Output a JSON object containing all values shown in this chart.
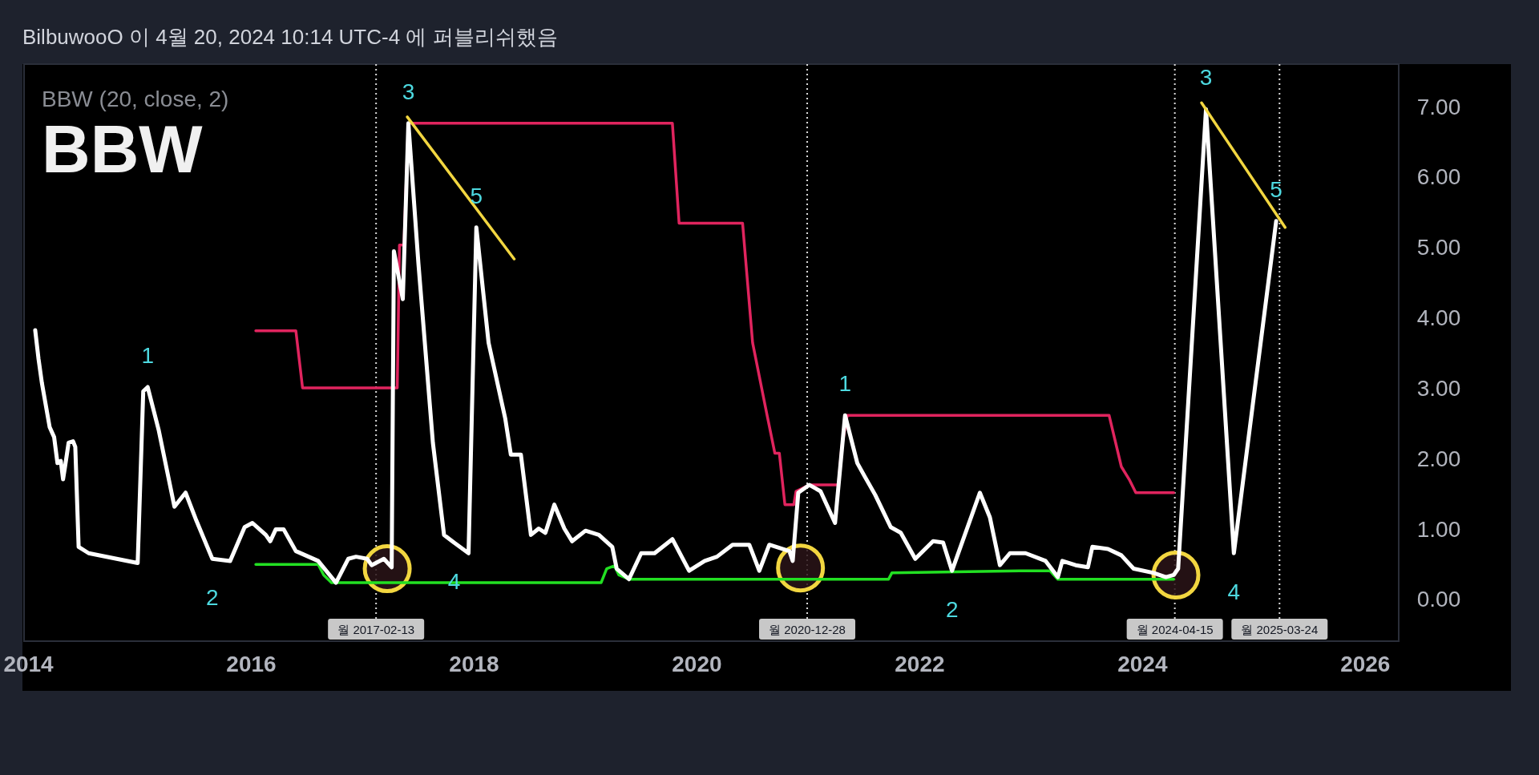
{
  "chart_data": {
    "type": "line",
    "title": "BilbuwooO 이 4월 20, 2024 10:14 UTC-4 에 퍼블리쉬했음",
    "subtitle": "BBW (20, close, 2)",
    "xlim": [
      2013.96,
      2026.3
    ],
    "ylim": [
      -0.6,
      7.6
    ],
    "xticks": [
      2014,
      2016,
      2018,
      2020,
      2022,
      2024,
      2026
    ],
    "yticks": [
      {
        "value": 0,
        "label": "0.00"
      },
      {
        "value": 1,
        "label": "1.00"
      },
      {
        "value": 2,
        "label": "2.00"
      },
      {
        "value": 3,
        "label": "3.00"
      },
      {
        "value": 4,
        "label": "4.00"
      },
      {
        "value": 5,
        "label": "5.00"
      },
      {
        "value": 6,
        "label": "6.00"
      },
      {
        "value": 7,
        "label": "7.00"
      }
    ],
    "series": [
      {
        "color": "#e0245e",
        "x": [
          2016.04,
          2016.4,
          2016.46,
          2017.31,
          2017.33,
          2017.37,
          2017.41,
          2019.78,
          2019.84,
          2020.41,
          2020.5,
          2020.63,
          2020.7,
          2020.74,
          2020.79,
          2020.87,
          2020.89,
          2021.01,
          2021.27,
          2021.3,
          2021.35,
          2023.7,
          2023.81,
          2023.88,
          2023.94,
          2024.28
        ],
        "values": [
          3.81,
          3.81,
          3.0,
          3.0,
          5.03,
          5.03,
          6.76,
          6.76,
          5.34,
          5.34,
          3.64,
          2.61,
          2.07,
          2.07,
          1.34,
          1.34,
          1.53,
          1.62,
          1.62,
          2.16,
          2.61,
          2.61,
          1.88,
          1.7,
          1.51,
          1.51
        ]
      },
      {
        "color": "#22e022",
        "x": [
          2016.04,
          2016.6,
          2016.65,
          2016.72,
          2019.14,
          2019.19,
          2019.26,
          2019.3,
          2019.39,
          2021.72,
          2021.75,
          2022.95,
          2023.17,
          2023.24,
          2024.28
        ],
        "values": [
          0.49,
          0.49,
          0.34,
          0.23,
          0.23,
          0.43,
          0.47,
          0.34,
          0.28,
          0.28,
          0.37,
          0.4,
          0.4,
          0.28,
          0.28
        ]
      },
      {
        "color": "#ffffff",
        "x": [
          2014.06,
          2014.09,
          2014.12,
          2014.19,
          2014.23,
          2014.26,
          2014.29,
          2014.31,
          2014.33,
          2014.36,
          2014.4,
          2014.42,
          2014.45,
          2014.54,
          2014.98,
          2015.03,
          2015.07,
          2015.17,
          2015.31,
          2015.41,
          2015.5,
          2015.65,
          2015.81,
          2015.94,
          2016.01,
          2016.13,
          2016.17,
          2016.22,
          2016.29,
          2016.4,
          2016.6,
          2016.76,
          2016.87,
          2016.94,
          2017.04,
          2017.08,
          2017.19,
          2017.26,
          2017.28,
          2017.32,
          2017.36,
          2017.41,
          2017.5,
          2017.63,
          2017.73,
          2017.82,
          2017.95,
          2018.02,
          2018.13,
          2018.28,
          2018.33,
          2018.42,
          2018.51,
          2018.58,
          2018.64,
          2018.72,
          2018.81,
          2018.88,
          2019.0,
          2019.12,
          2019.24,
          2019.28,
          2019.39,
          2019.5,
          2019.62,
          2019.78,
          2019.93,
          2020.07,
          2020.18,
          2020.32,
          2020.47,
          2020.56,
          2020.65,
          2020.83,
          2020.86,
          2020.91,
          2021.01,
          2021.11,
          2021.24,
          2021.33,
          2021.44,
          2021.51,
          2021.6,
          2021.74,
          2021.83,
          2021.96,
          2022.12,
          2022.21,
          2022.29,
          2022.54,
          2022.63,
          2022.72,
          2022.81,
          2022.95,
          2023.13,
          2023.24,
          2023.28,
          2023.4,
          2023.51,
          2023.55,
          2023.69,
          2023.81,
          2023.92,
          2024.1,
          2024.21,
          2024.28,
          2024.32,
          2024.57,
          2024.82,
          2025.2
        ],
        "values": [
          3.82,
          3.41,
          3.07,
          2.44,
          2.3,
          1.93,
          1.96,
          1.7,
          1.9,
          2.22,
          2.24,
          2.16,
          0.74,
          0.65,
          0.51,
          2.95,
          3.01,
          2.39,
          1.31,
          1.51,
          1.14,
          0.57,
          0.54,
          1.02,
          1.08,
          0.91,
          0.82,
          0.99,
          0.99,
          0.68,
          0.54,
          0.23,
          0.57,
          0.6,
          0.57,
          0.48,
          0.57,
          0.45,
          4.94,
          4.6,
          4.26,
          6.76,
          4.77,
          2.22,
          0.91,
          0.8,
          0.65,
          5.28,
          3.64,
          2.56,
          2.05,
          2.05,
          0.91,
          1.0,
          0.94,
          1.34,
          1.0,
          0.82,
          0.97,
          0.91,
          0.74,
          0.43,
          0.28,
          0.65,
          0.65,
          0.85,
          0.4,
          0.54,
          0.6,
          0.77,
          0.77,
          0.4,
          0.77,
          0.68,
          0.54,
          1.51,
          1.62,
          1.53,
          1.08,
          2.61,
          1.93,
          1.73,
          1.48,
          1.02,
          0.94,
          0.57,
          0.82,
          0.8,
          0.4,
          1.51,
          1.16,
          0.48,
          0.65,
          0.65,
          0.54,
          0.31,
          0.54,
          0.48,
          0.45,
          0.74,
          0.71,
          0.62,
          0.43,
          0.37,
          0.31,
          0.34,
          0.43,
          6.96,
          0.65,
          5.37
        ]
      },
      {
        "color": "#f2d640",
        "x": [
          2017.4,
          2018.36
        ],
        "values": [
          6.85,
          4.83
        ]
      },
      {
        "color": "#f2d640",
        "x": [
          2024.53,
          2025.28
        ],
        "values": [
          7.05,
          5.28
        ]
      },
      {
        "type": "scatter",
        "marker": "circle",
        "color": "#f2d640",
        "x": [
          2017.22,
          2020.93,
          2024.3
        ],
        "values": [
          0.43,
          0.44,
          0.34
        ]
      }
    ],
    "ref_lines": [
      {
        "axis": "x",
        "value": 2017.12,
        "label": "월 2017-02-13",
        "color": "#d9d9d9",
        "line_style": "dotted"
      },
      {
        "axis": "x",
        "value": 2020.99,
        "label": "월 2020-12-28",
        "color": "#d9d9d9",
        "line_style": "dotted"
      },
      {
        "axis": "x",
        "value": 2024.29,
        "label": "월 2024-04-15",
        "color": "#d9d9d9",
        "line_style": "dotted"
      },
      {
        "axis": "x",
        "value": 2025.23,
        "label": "월 2025-03-24",
        "color": "#d9d9d9",
        "line_style": "dotted"
      }
    ],
    "annotations": [
      "BBW",
      {
        "text": "1",
        "x": 2015.07,
        "y": 3.01
      },
      {
        "text": "2",
        "x": 2015.65,
        "y": 0.57
      },
      {
        "text": "3",
        "x": 2017.41,
        "y": 6.76
      },
      {
        "text": "4",
        "x": 2017.82,
        "y": 0.8
      },
      {
        "text": "5",
        "x": 2018.02,
        "y": 5.28
      },
      {
        "text": "1",
        "x": 2021.33,
        "y": 2.61
      },
      {
        "text": "2",
        "x": 2022.29,
        "y": 0.4
      },
      {
        "text": "3",
        "x": 2024.57,
        "y": 6.96
      },
      {
        "text": "4",
        "x": 2024.82,
        "y": 0.65
      },
      {
        "text": "5",
        "x": 2025.2,
        "y": 5.37
      }
    ]
  }
}
